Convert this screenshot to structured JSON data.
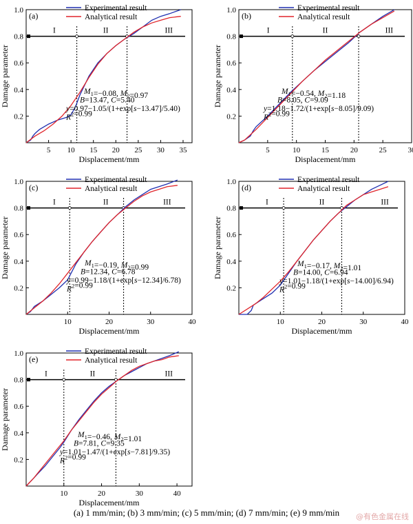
{
  "figure": {
    "caption": "(a)  1  mm/min; (b) 3 mm/min; (c) 5 mm/min; (d) 7 mm/min; (e) 9 mm/min",
    "watermark": "@有色金属在线"
  },
  "chart_data": [
    {
      "type": "line",
      "panel": "(a)",
      "xlabel": "Displacement/mm",
      "ylabel": "Damage parameter",
      "xlim": [
        0,
        37
      ],
      "ylim": [
        0,
        1.0
      ],
      "xticks": [
        5,
        10,
        15,
        20,
        25,
        30,
        35
      ],
      "yticks": [
        0.2,
        0.4,
        0.6,
        0.8,
        1.0
      ],
      "legend": [
        "Experimental result",
        "Analytical result"
      ],
      "params": {
        "M1": -0.08,
        "M2": 0.97,
        "B": 13.47,
        "C": 5.4
      },
      "annotations": [
        "M1=−0.08, M2=0.97",
        "B=13.47, C=5.40",
        "y=0.97−1.05/(1+exp[s−13.47]/5.40)",
        "R2=0.99"
      ],
      "stage_labels": [
        "I",
        "II",
        "III"
      ],
      "boundaries": [
        11.3,
        22.5
      ],
      "series": [
        {
          "name": "Experimental result",
          "color": "#1f2fb0",
          "x": [
            0,
            1,
            1.5,
            2,
            2.3,
            3,
            5,
            7,
            9,
            10,
            11,
            12,
            14,
            16,
            18,
            20,
            22,
            24,
            26,
            28,
            30,
            32,
            34.5
          ],
          "y": [
            0,
            0.02,
            0.05,
            0.07,
            0.08,
            0.1,
            0.14,
            0.17,
            0.19,
            0.21,
            0.27,
            0.36,
            0.5,
            0.6,
            0.67,
            0.73,
            0.78,
            0.82,
            0.87,
            0.92,
            0.95,
            0.97,
            1.0
          ]
        },
        {
          "name": "Analytical result",
          "color": "#e0242a",
          "x": [
            0,
            2,
            4,
            6,
            8,
            10,
            12,
            14,
            16,
            18,
            20,
            22,
            24,
            26,
            28,
            30,
            32,
            34.5
          ],
          "y": [
            0,
            0.05,
            0.09,
            0.14,
            0.2,
            0.28,
            0.38,
            0.49,
            0.59,
            0.67,
            0.73,
            0.78,
            0.83,
            0.87,
            0.9,
            0.92,
            0.94,
            0.95
          ]
        }
      ]
    },
    {
      "type": "line",
      "panel": "(b)",
      "xlabel": "Displacement/mm",
      "ylabel": "Damage parameter",
      "xlim": [
        0,
        30
      ],
      "ylim": [
        0,
        1.0
      ],
      "xticks": [
        5,
        10,
        15,
        20,
        25,
        30
      ],
      "yticks": [
        0.2,
        0.4,
        0.6,
        0.8,
        1.0
      ],
      "legend": [
        "Experimental result",
        "Analytical result"
      ],
      "params": {
        "M1": -0.54,
        "M2": 1.18,
        "B": 8.05,
        "C": 9.09
      },
      "annotations": [
        "M1=−0.54, M2=1.18",
        "B=8.05, C=9.09",
        "y=1.18−1.72/(1+exp[s−8.05]/9.09)",
        "R2=0.99"
      ],
      "stage_labels": [
        "I",
        "II",
        "III"
      ],
      "boundaries": [
        9.3,
        20.8
      ],
      "series": [
        {
          "name": "Experimental result",
          "color": "#1f2fb0",
          "x": [
            0,
            1,
            2,
            2.5,
            3,
            5,
            7,
            9,
            11,
            13,
            15,
            17,
            19,
            21,
            23,
            25,
            27
          ],
          "y": [
            0,
            0.02,
            0.05,
            0.09,
            0.12,
            0.2,
            0.29,
            0.38,
            0.46,
            0.54,
            0.61,
            0.68,
            0.75,
            0.83,
            0.89,
            0.95,
            1.0
          ]
        },
        {
          "name": "Analytical result",
          "color": "#e0242a",
          "x": [
            0,
            1,
            3,
            5,
            7,
            9,
            11,
            13,
            15,
            17,
            19,
            21,
            23,
            25,
            27
          ],
          "y": [
            0,
            0.02,
            0.1,
            0.19,
            0.28,
            0.37,
            0.46,
            0.54,
            0.62,
            0.69,
            0.76,
            0.83,
            0.89,
            0.94,
            0.99
          ]
        }
      ]
    },
    {
      "type": "line",
      "panel": "(c)",
      "xlabel": "Displacement/mm",
      "ylabel": "Damage parameter",
      "xlim": [
        0,
        40
      ],
      "ylim": [
        0,
        1.0
      ],
      "xticks": [
        10,
        20,
        30,
        40
      ],
      "yticks": [
        0.2,
        0.4,
        0.6,
        0.8,
        1.0
      ],
      "legend": [
        "Experimental result",
        "Analytical result"
      ],
      "params": {
        "M1": -0.19,
        "M2": 0.99,
        "B": 12.34,
        "C": 6.78
      },
      "annotations": [
        "M1=−0.19, M2=0.99",
        "B=12.34, C=6.78",
        "y=0.99−1.18/(1+exp[s−12.34]/6.78)",
        "R2=0.99"
      ],
      "stage_labels": [
        "I",
        "II",
        "III"
      ],
      "boundaries": [
        10.5,
        23.5
      ],
      "series": [
        {
          "name": "Experimental result",
          "color": "#1f2fb0",
          "x": [
            0,
            1,
            1.5,
            2,
            4,
            6,
            8,
            10,
            12,
            14,
            16,
            18,
            20,
            22,
            24,
            26,
            28,
            30,
            32,
            34,
            36.5
          ],
          "y": [
            0,
            0.02,
            0.04,
            0.06,
            0.1,
            0.15,
            0.2,
            0.26,
            0.38,
            0.47,
            0.55,
            0.62,
            0.69,
            0.75,
            0.81,
            0.86,
            0.9,
            0.94,
            0.96,
            0.98,
            1.01
          ]
        },
        {
          "name": "Analytical result",
          "color": "#e0242a",
          "x": [
            0,
            2,
            4,
            6,
            8,
            10,
            12,
            14,
            16,
            18,
            20,
            22,
            24,
            26,
            28,
            30,
            32,
            34,
            36.5
          ],
          "y": [
            0,
            0.05,
            0.1,
            0.16,
            0.23,
            0.31,
            0.39,
            0.47,
            0.55,
            0.62,
            0.69,
            0.75,
            0.8,
            0.85,
            0.89,
            0.92,
            0.94,
            0.96,
            0.97
          ]
        }
      ]
    },
    {
      "type": "line",
      "panel": "(d)",
      "xlabel": "Displacement/mm",
      "ylabel": "Damage parameter",
      "xlim": [
        0,
        40
      ],
      "ylim": [
        0,
        1.0
      ],
      "xticks": [
        10,
        20,
        30,
        40
      ],
      "yticks": [
        0.2,
        0.4,
        0.6,
        0.8,
        1.0
      ],
      "legend": [
        "Experimental result",
        "Analytical result"
      ],
      "params": {
        "M1": -0.17,
        "M2": 1.01,
        "B": 14.0,
        "C": 6.94
      },
      "annotations": [
        "M1=−0.17, M2=1.01",
        "B=14.00, C=6.94",
        "y=1.01−1.18/(1+exp[s−14.00]/6.94)",
        "R2=0.99"
      ],
      "stage_labels": [
        "I",
        "II",
        "III"
      ],
      "boundaries": [
        10.8,
        24.8
      ],
      "series": [
        {
          "name": "Experimental result",
          "color": "#1f2fb0",
          "x": [
            0,
            2,
            3,
            3.5,
            4,
            6,
            8,
            10,
            12,
            14,
            16,
            18,
            20,
            22,
            24,
            26,
            28,
            30,
            32,
            34,
            36
          ],
          "y": [
            0,
            0.0,
            0.03,
            0.07,
            0.08,
            0.12,
            0.16,
            0.22,
            0.31,
            0.4,
            0.48,
            0.56,
            0.63,
            0.7,
            0.76,
            0.81,
            0.86,
            0.9,
            0.94,
            0.97,
            1.0
          ]
        },
        {
          "name": "Analytical result",
          "color": "#e0242a",
          "x": [
            0,
            2,
            4,
            6,
            8,
            10,
            12,
            14,
            16,
            18,
            20,
            22,
            24,
            26,
            28,
            30,
            32,
            34,
            36
          ],
          "y": [
            0,
            0.04,
            0.08,
            0.13,
            0.19,
            0.25,
            0.32,
            0.4,
            0.48,
            0.56,
            0.63,
            0.7,
            0.76,
            0.82,
            0.86,
            0.9,
            0.92,
            0.94,
            0.96
          ]
        }
      ]
    },
    {
      "type": "line",
      "panel": "(e)",
      "xlabel": "Displacement/mm",
      "ylabel": "Damage parameter",
      "xlim": [
        0,
        44
      ],
      "ylim": [
        0,
        1.0
      ],
      "xticks": [
        10,
        20,
        30,
        40
      ],
      "yticks": [
        0.2,
        0.4,
        0.6,
        0.8,
        1.0
      ],
      "legend": [
        "Experimental result",
        "Analytical result"
      ],
      "params": {
        "M1": -0.46,
        "M2": 1.01,
        "B": 7.81,
        "C": 9.35
      },
      "annotations": [
        "M1=−0.46, M2=1.01",
        "B=7.81, C=9.35",
        "y=1.01−1.47/(1+exp[s−7.81]/9.35)",
        "R2=0.99"
      ],
      "stage_labels": [
        "I",
        "II",
        "III"
      ],
      "boundaries": [
        10.0,
        23.8
      ],
      "series": [
        {
          "name": "Experimental result",
          "color": "#1f2fb0",
          "x": [
            0,
            1,
            2,
            3,
            5,
            7,
            9,
            10,
            12,
            14,
            16,
            18,
            20,
            22,
            24,
            26,
            28,
            30,
            32,
            34,
            36,
            38,
            40.5
          ],
          "y": [
            0,
            0.03,
            0.06,
            0.09,
            0.15,
            0.22,
            0.29,
            0.33,
            0.42,
            0.5,
            0.57,
            0.64,
            0.7,
            0.75,
            0.79,
            0.83,
            0.86,
            0.89,
            0.92,
            0.94,
            0.96,
            0.98,
            1.01
          ]
        },
        {
          "name": "Analytical result",
          "color": "#e0242a",
          "x": [
            0,
            2,
            4,
            6,
            8,
            10,
            12,
            14,
            16,
            18,
            20,
            22,
            24,
            26,
            28,
            30,
            32,
            34,
            36,
            38,
            40.5
          ],
          "y": [
            0,
            0.06,
            0.13,
            0.2,
            0.27,
            0.34,
            0.42,
            0.49,
            0.56,
            0.63,
            0.69,
            0.74,
            0.79,
            0.83,
            0.87,
            0.9,
            0.92,
            0.94,
            0.95,
            0.97,
            0.98
          ]
        }
      ]
    }
  ]
}
